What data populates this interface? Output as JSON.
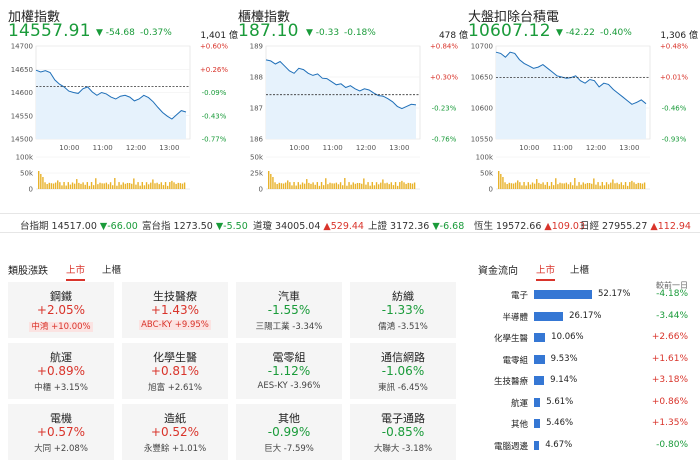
{
  "panels": [
    {
      "title": "加權指數",
      "index": "14557.91",
      "change": "▼ -54.68",
      "change_pct": "-0.37%",
      "volume": "1,401 億",
      "left_ticks": [
        "14700",
        "14650",
        "14600",
        "14550",
        "14500"
      ],
      "right_ticks": [
        "+0.60%",
        "+0.26%",
        "-0.09%",
        "-0.43%",
        "-0.77%"
      ],
      "time_ticks": [
        "10:00",
        "11:00",
        "12:00",
        "13:00"
      ],
      "vol_ticks": [
        "100k",
        "50k",
        "0"
      ],
      "ref": 14612.59,
      "ymin": 14500,
      "ymax": 14700,
      "line": [
        14648,
        14644,
        14647,
        14643,
        14627,
        14618,
        14612,
        14603,
        14600,
        14598,
        14608,
        14612,
        14601,
        14594,
        14600,
        14597,
        14590,
        14586,
        14592,
        14594,
        14590,
        14582,
        14586,
        14594,
        14589,
        14580,
        14568,
        14557,
        14549,
        14543,
        14552,
        14561,
        14558
      ]
    },
    {
      "title": "櫃檯指數",
      "index": "187.10",
      "change": "▼ -0.33",
      "change_pct": "-0.18%",
      "volume": "478 億",
      "left_ticks": [
        "189",
        "188",
        "187",
        "186"
      ],
      "right_ticks": [
        "+0.84%",
        "+0.30%",
        "-0.23%",
        "-0.76%"
      ],
      "time_ticks": [
        "10:00",
        "11:00",
        "12:00",
        "13:00"
      ],
      "vol_ticks": [
        "50k",
        "25k",
        "0"
      ],
      "ref": 187.43,
      "ymin": 186,
      "ymax": 189,
      "line": [
        188.55,
        188.52,
        188.42,
        188.5,
        188.35,
        188.2,
        188.12,
        188.28,
        188.24,
        188.12,
        188.05,
        188.1,
        187.96,
        187.95,
        187.85,
        187.75,
        187.78,
        187.66,
        187.72,
        187.62,
        187.55,
        187.62,
        187.58,
        187.48,
        187.4,
        187.38,
        187.3,
        187.2,
        187.05,
        186.98,
        187.05,
        187.12,
        187.1
      ]
    },
    {
      "title": "大盤扣除台積電",
      "index": "10607.12",
      "change": "▼ -42.22",
      "change_pct": "-0.40%",
      "volume": "1,306 億",
      "left_ticks": [
        "10700",
        "10650",
        "10600",
        "10550"
      ],
      "right_ticks": [
        "+0.48%",
        "+0.01%",
        "-0.46%",
        "-0.93%"
      ],
      "time_ticks": [
        "10:00",
        "11:00",
        "12:00",
        "13:00"
      ],
      "vol_ticks": [
        "100k",
        "50k",
        "0"
      ],
      "ref": 10649.34,
      "ymin": 10550,
      "ymax": 10700,
      "line": [
        10690,
        10688,
        10682,
        10690,
        10688,
        10678,
        10672,
        10668,
        10664,
        10666,
        10670,
        10664,
        10658,
        10652,
        10650,
        10648,
        10649,
        10652,
        10644,
        10640,
        10646,
        10644,
        10634,
        10640,
        10638,
        10630,
        10624,
        10618,
        10612,
        10606,
        10609,
        10613,
        10607
      ]
    }
  ],
  "ticker": [
    {
      "label": "台指期",
      "value": "14517.00",
      "chg": "▼-66.00",
      "dir": "dn"
    },
    {
      "label": "富台指",
      "value": "1273.50",
      "chg": "▼-5.50",
      "dir": "dn"
    },
    {
      "label": "道瓊",
      "value": "34005.04",
      "chg": "▲529.44",
      "dir": "up"
    },
    {
      "label": "上證",
      "value": "3172.36",
      "chg": "▼-6.68",
      "dir": "dn"
    },
    {
      "label": "恆生",
      "value": "19572.66",
      "chg": "▲109.03",
      "dir": "up"
    },
    {
      "label": "日經",
      "value": "27955.27",
      "chg": "▲112.94",
      "dir": "up"
    }
  ],
  "sectors": {
    "title": "類股漲跌",
    "tabs": [
      "上市",
      "上櫃"
    ],
    "items": [
      {
        "name": "鋼鐵",
        "pct": "+2.05%",
        "dir": "up",
        "sub": "中鴻 +10.00%",
        "boxed": true
      },
      {
        "name": "生技醫療",
        "pct": "+1.43%",
        "dir": "up",
        "sub": "ABC-KY +9.95%",
        "boxed": true
      },
      {
        "name": "汽車",
        "pct": "-1.55%",
        "dir": "dn",
        "sub": "三陽工業 -3.34%",
        "boxed": false
      },
      {
        "name": "紡織",
        "pct": "-1.33%",
        "dir": "dn",
        "sub": "儒鴻 -3.51%",
        "boxed": false
      },
      {
        "name": "航運",
        "pct": "+0.89%",
        "dir": "up",
        "sub": "中櫃 +3.15%",
        "boxed": false
      },
      {
        "name": "化學生醫",
        "pct": "+0.81%",
        "dir": "up",
        "sub": "旭富 +2.61%",
        "boxed": false
      },
      {
        "name": "電零組",
        "pct": "-1.12%",
        "dir": "dn",
        "sub": "AES-KY -3.96%",
        "boxed": false
      },
      {
        "name": "通信網路",
        "pct": "-1.06%",
        "dir": "dn",
        "sub": "東訊 -6.45%",
        "boxed": false
      },
      {
        "name": "電機",
        "pct": "+0.57%",
        "dir": "up",
        "sub": "大同 +2.08%",
        "boxed": false
      },
      {
        "name": "造紙",
        "pct": "+0.52%",
        "dir": "up",
        "sub": "永豐餘 +1.01%",
        "boxed": false
      },
      {
        "name": "其他",
        "pct": "-0.99%",
        "dir": "dn",
        "sub": "巨大 -7.59%",
        "boxed": false
      },
      {
        "name": "電子通路",
        "pct": "-0.85%",
        "dir": "dn",
        "sub": "大聯大 -3.18%",
        "boxed": false
      }
    ]
  },
  "flow": {
    "title": "資金流向",
    "tabs": [
      "上市",
      "上櫃"
    ],
    "note": "較前一日",
    "rows": [
      {
        "name": "電子",
        "pct": "52.17%",
        "value": 52.17,
        "chg": "-4.18%",
        "dir": "dn"
      },
      {
        "name": "半導體",
        "pct": "26.17%",
        "value": 26.17,
        "chg": "-3.44%",
        "dir": "dn"
      },
      {
        "name": "化學生醫",
        "pct": "10.06%",
        "value": 10.06,
        "chg": "+2.66%",
        "dir": "up"
      },
      {
        "name": "電零組",
        "pct": "9.53%",
        "value": 9.53,
        "chg": "+1.61%",
        "dir": "up"
      },
      {
        "name": "生技醫療",
        "pct": "9.14%",
        "value": 9.14,
        "chg": "+3.18%",
        "dir": "up"
      },
      {
        "name": "航運",
        "pct": "5.61%",
        "value": 5.61,
        "chg": "+0.86%",
        "dir": "up"
      },
      {
        "name": "其他",
        "pct": "5.46%",
        "value": 5.46,
        "chg": "+1.35%",
        "dir": "up"
      },
      {
        "name": "電腦週邊",
        "pct": "4.67%",
        "value": 4.67,
        "chg": "-0.80%",
        "dir": "dn"
      }
    ]
  },
  "colors": {
    "up": "#d9342b",
    "down": "#1a9b3a",
    "bar": "#3577d4",
    "volume": "#e8b22a",
    "area": "#e6f2fc"
  }
}
